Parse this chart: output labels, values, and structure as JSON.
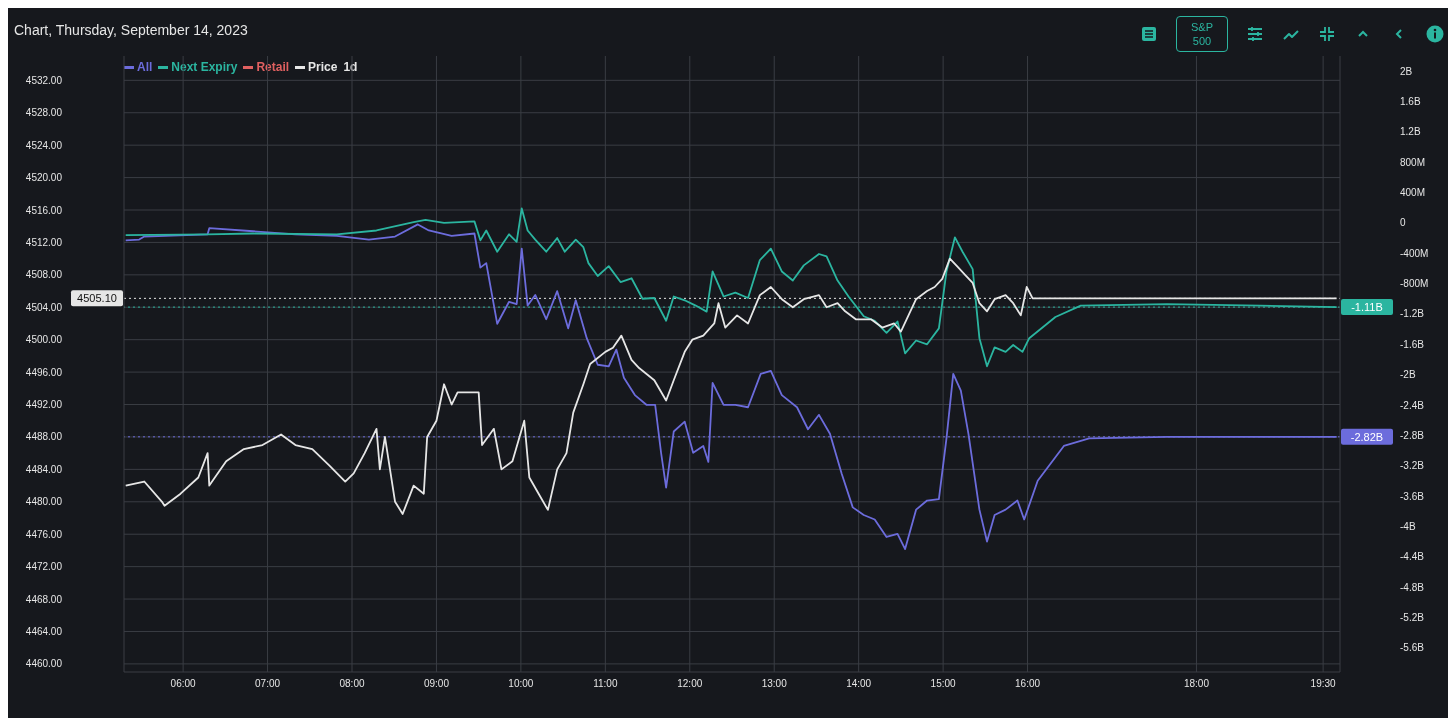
{
  "chart_data": {
    "type": "line",
    "title": "Chart, Thursday, September 14, 2023",
    "annotations": [
      "1d",
      "S&P 500"
    ],
    "legend": "top left",
    "grid": true,
    "xlim": [
      5.3,
      19.7
    ],
    "xticks": [
      {
        "value": 6,
        "label": "06:00"
      },
      {
        "value": 7,
        "label": "07:00"
      },
      {
        "value": 8,
        "label": "08:00"
      },
      {
        "value": 9,
        "label": "09:00"
      },
      {
        "value": 10,
        "label": "10:00"
      },
      {
        "value": 11,
        "label": "11:00"
      },
      {
        "value": 12,
        "label": "12:00"
      },
      {
        "value": 13,
        "label": "13:00"
      },
      {
        "value": 14,
        "label": "14:00"
      },
      {
        "value": 15,
        "label": "15:00"
      },
      {
        "value": 16,
        "label": "16:00"
      },
      {
        "value": 18,
        "label": "18:00"
      },
      {
        "value": 19.5,
        "label": "19:30"
      }
    ],
    "ylim": [
      4459,
      4535
    ],
    "yticks": [
      {
        "value": 4460,
        "label": "4460.00"
      },
      {
        "value": 4464,
        "label": "4464.00"
      },
      {
        "value": 4468,
        "label": "4468.00"
      },
      {
        "value": 4472,
        "label": "4472.00"
      },
      {
        "value": 4476,
        "label": "4476.00"
      },
      {
        "value": 4480,
        "label": "4480.00"
      },
      {
        "value": 4484,
        "label": "4484.00"
      },
      {
        "value": 4488,
        "label": "4488.00"
      },
      {
        "value": 4492,
        "label": "4492.00"
      },
      {
        "value": 4496,
        "label": "4496.00"
      },
      {
        "value": 4500,
        "label": "4500.00"
      },
      {
        "value": 4504,
        "label": "4504.00"
      },
      {
        "value": 4508,
        "label": "4508.00"
      },
      {
        "value": 4512,
        "label": "4512.00"
      },
      {
        "value": 4516,
        "label": "4516.00"
      },
      {
        "value": 4520,
        "label": "4520.00"
      },
      {
        "value": 4524,
        "label": "4524.00"
      },
      {
        "value": 4528,
        "label": "4528.00"
      },
      {
        "value": 4532,
        "label": "4532.00"
      }
    ],
    "y2lim": [
      -5920000000.0,
      2200000000.0
    ],
    "y2ticks": [
      {
        "value": 2000000000.0,
        "label": "2B"
      },
      {
        "value": 1600000000.0,
        "label": "1.6B"
      },
      {
        "value": 1200000000.0,
        "label": "1.2B"
      },
      {
        "value": 800000000.0,
        "label": "800M"
      },
      {
        "value": 400000000.0,
        "label": "400M"
      },
      0,
      {
        "value": -400000000.0,
        "label": "-400M"
      },
      {
        "value": -800000000.0,
        "label": "-800M"
      },
      {
        "value": -1200000000.0,
        "label": "-1.2B"
      },
      {
        "value": -1600000000.0,
        "label": "-1.6B"
      },
      {
        "value": -2000000000.0,
        "label": "-2B"
      },
      {
        "value": -2400000000.0,
        "label": "-2.4B"
      },
      {
        "value": -2800000000.0,
        "label": "-2.8B"
      },
      {
        "value": -3200000000.0,
        "label": "-3.2B"
      },
      {
        "value": -3600000000.0,
        "label": "-3.6B"
      },
      {
        "value": -4000000000.0,
        "label": "-4B"
      },
      {
        "value": -4400000000.0,
        "label": "-4.4B"
      },
      {
        "value": -4800000000.0,
        "label": "-4.8B"
      },
      {
        "value": -5200000000.0,
        "label": "-5.2B"
      },
      {
        "value": -5600000000.0,
        "label": "-5.6B"
      }
    ],
    "ref_lines": [
      {
        "axis": "y",
        "value": 4505.1,
        "label": "4505.10",
        "color": "#e6e6e6",
        "line_style": "dotted"
      },
      {
        "axis": "y2",
        "value": -1110000000.0,
        "label": "-1.11B",
        "color": "#2bb5a0",
        "line_style": "dotted"
      },
      {
        "axis": "y2",
        "value": -2820000000.0,
        "label": "-2.82B",
        "color": "#6c6cdc",
        "line_style": "dotted"
      }
    ],
    "series": [
      {
        "name": "All",
        "color": "#6c6cdc",
        "axis": "y2",
        "x": [
          5.32,
          5.48,
          5.54,
          6.29,
          6.31,
          6.83,
          7.33,
          7.82,
          8.2,
          8.51,
          8.78,
          8.91,
          9.18,
          9.45,
          9.52,
          9.59,
          9.72,
          9.86,
          9.95,
          10.01,
          10.08,
          10.17,
          10.3,
          10.43,
          10.56,
          10.65,
          10.78,
          10.91,
          11.04,
          11.13,
          11.22,
          11.35,
          11.49,
          11.59,
          11.66,
          11.72,
          11.81,
          11.94,
          12.04,
          12.16,
          12.22,
          12.27,
          12.4,
          12.54,
          12.69,
          12.84,
          12.96,
          13.09,
          13.27,
          13.4,
          13.53,
          13.66,
          13.8,
          13.93,
          14.06,
          14.19,
          14.33,
          14.46,
          14.55,
          14.68,
          14.81,
          14.95,
          15.04,
          15.12,
          15.21,
          15.3,
          15.43,
          15.52,
          15.61,
          15.74,
          15.88,
          15.96,
          16.12,
          16.43,
          16.73,
          17.65,
          19.66
        ],
        "values": [
          -230000000.0,
          -220000000.0,
          -180000000.0,
          -150000000.0,
          -70000000.0,
          -110000000.0,
          -150000000.0,
          -170000000.0,
          -220000000.0,
          -180000000.0,
          -20000000.0,
          -100000000.0,
          -170000000.0,
          -140000000.0,
          -590000000.0,
          -530000000.0,
          -1330000000.0,
          -1040000000.0,
          -1070000000.0,
          -340000000.0,
          -1090000000.0,
          -950000000.0,
          -1270000000.0,
          -900000000.0,
          -1390000000.0,
          -1020000000.0,
          -1520000000.0,
          -1870000000.0,
          -1890000000.0,
          -1670000000.0,
          -2040000000.0,
          -2270000000.0,
          -2400000000.0,
          -2400000000.0,
          -3030000000.0,
          -3490000000.0,
          -2750000000.0,
          -2620000000.0,
          -3030000000.0,
          -2940000000.0,
          -3150000000.0,
          -2110000000.0,
          -2400000000.0,
          -2400000000.0,
          -2430000000.0,
          -1990000000.0,
          -1950000000.0,
          -2270000000.0,
          -2430000000.0,
          -2720000000.0,
          -2530000000.0,
          -2780000000.0,
          -3310000000.0,
          -3750000000.0,
          -3850000000.0,
          -3910000000.0,
          -4140000000.0,
          -4100000000.0,
          -4300000000.0,
          -3780000000.0,
          -3660000000.0,
          -3640000000.0,
          -2840000000.0,
          -1990000000.0,
          -2210000000.0,
          -2780000000.0,
          -3780000000.0,
          -4200000000.0,
          -3850000000.0,
          -3780000000.0,
          -3660000000.0,
          -3910000000.0,
          -3400000000.0,
          -2940000000.0,
          -2840000000.0,
          -2820000000.0,
          -2820000000.0
        ]
      },
      {
        "name": "Next Expiry",
        "color": "#2bb5a0",
        "axis": "y2",
        "x": [
          5.32,
          6.29,
          6.83,
          7.82,
          8.29,
          8.73,
          8.87,
          9.09,
          9.45,
          9.52,
          9.59,
          9.72,
          9.86,
          9.95,
          10.01,
          10.08,
          10.17,
          10.3,
          10.43,
          10.52,
          10.65,
          10.74,
          10.8,
          10.91,
          11.04,
          11.18,
          11.31,
          11.44,
          11.58,
          11.72,
          11.81,
          11.94,
          12.07,
          12.2,
          12.27,
          12.4,
          12.54,
          12.69,
          12.83,
          12.96,
          13.09,
          13.22,
          13.35,
          13.53,
          13.62,
          13.75,
          13.88,
          14.06,
          14.19,
          14.33,
          14.46,
          14.55,
          14.68,
          14.81,
          14.95,
          15.04,
          15.14,
          15.23,
          15.35,
          15.43,
          15.52,
          15.61,
          15.74,
          15.83,
          15.94,
          16.02,
          16.33,
          16.63,
          17.65,
          18.75,
          19.66
        ],
        "values": [
          -160000000.0,
          -150000000.0,
          -140000000.0,
          -150000000.0,
          -100000000.0,
          10000000.0,
          40000000.0,
          0,
          20000000.0,
          -230000000.0,
          -100000000.0,
          -380000000.0,
          -150000000.0,
          -250000000.0,
          190000000.0,
          -100000000.0,
          -220000000.0,
          -380000000.0,
          -200000000.0,
          -380000000.0,
          -220000000.0,
          -320000000.0,
          -530000000.0,
          -700000000.0,
          -570000000.0,
          -780000000.0,
          -730000000.0,
          -1000000000.0,
          -990000000.0,
          -1290000000.0,
          -970000000.0,
          -1020000000.0,
          -1090000000.0,
          -1170000000.0,
          -640000000.0,
          -970000000.0,
          -920000000.0,
          -990000000.0,
          -490000000.0,
          -340000000.0,
          -640000000.0,
          -760000000.0,
          -560000000.0,
          -410000000.0,
          -440000000.0,
          -760000000.0,
          -970000000.0,
          -1230000000.0,
          -1290000000.0,
          -1450000000.0,
          -1300000000.0,
          -1720000000.0,
          -1550000000.0,
          -1600000000.0,
          -1390000000.0,
          -640000000.0,
          -190000000.0,
          -380000000.0,
          -610000000.0,
          -1520000000.0,
          -1890000000.0,
          -1640000000.0,
          -1700000000.0,
          -1610000000.0,
          -1700000000.0,
          -1520000000.0,
          -1240000000.0,
          -1090000000.0,
          -1070000000.0,
          -1090000000.0,
          -1110000000.0
        ]
      },
      {
        "name": "Retail",
        "color": "#e06060",
        "axis": "y2"
      },
      {
        "name": "Price",
        "color": "#e6e6e6",
        "axis": "y",
        "x": [
          5.32,
          5.54,
          5.75,
          5.78,
          5.97,
          6.18,
          6.29,
          6.31,
          6.51,
          6.72,
          6.94,
          7.16,
          7.33,
          7.53,
          7.73,
          7.92,
          8.02,
          8.15,
          8.29,
          8.33,
          8.39,
          8.51,
          8.6,
          8.73,
          8.85,
          8.89,
          9.0,
          9.09,
          9.18,
          9.25,
          9.5,
          9.54,
          9.68,
          9.77,
          9.9,
          10.04,
          10.1,
          10.21,
          10.32,
          10.43,
          10.54,
          10.62,
          10.74,
          10.82,
          11.0,
          11.09,
          11.19,
          11.31,
          11.4,
          11.58,
          11.72,
          11.81,
          11.94,
          12.03,
          12.16,
          12.29,
          12.34,
          12.42,
          12.56,
          12.69,
          12.83,
          12.96,
          13.09,
          13.22,
          13.35,
          13.53,
          13.62,
          13.75,
          13.84,
          13.97,
          14.15,
          14.28,
          14.42,
          14.5,
          14.59,
          14.68,
          14.81,
          14.9,
          14.99,
          15.08,
          15.17,
          15.26,
          15.35,
          15.43,
          15.52,
          15.61,
          15.74,
          15.83,
          15.92,
          15.99,
          16.06,
          19.66
        ],
        "values": [
          4482,
          4482.5,
          4480,
          4479.5,
          4481,
          4483,
          4486,
          4482,
          4485,
          4486.5,
          4487,
          4488.3,
          4487,
          4486.5,
          4484.5,
          4482.5,
          4483.5,
          4486,
          4489,
          4484,
          4488,
          4480,
          4478.5,
          4482,
          4481,
          4488,
          4490,
          4494.5,
          4492,
          4493.5,
          4493.5,
          4487,
          4489,
          4484,
          4485,
          4490,
          4483,
          4481,
          4479,
          4484,
          4486,
          4491,
          4494.5,
          4497,
          4498.5,
          4499,
          4500.5,
          4497.5,
          4496.5,
          4495,
          4492.5,
          4495,
          4498.5,
          4500,
          4500.5,
          4502,
          4504.5,
          4501.5,
          4503,
          4502,
          4505.5,
          4506.5,
          4505,
          4504,
          4505,
          4505.5,
          4504,
          4504.5,
          4503.5,
          4502.5,
          4502.5,
          4501.5,
          4502,
          4501,
          4503,
          4505,
          4506,
          4506.5,
          4507.5,
          4510,
          4509,
          4508,
          4507,
          4504.5,
          4503.5,
          4505,
          4505.5,
          4504.5,
          4503,
          4506.5,
          4505.1,
          4505.1
        ]
      }
    ]
  }
}
